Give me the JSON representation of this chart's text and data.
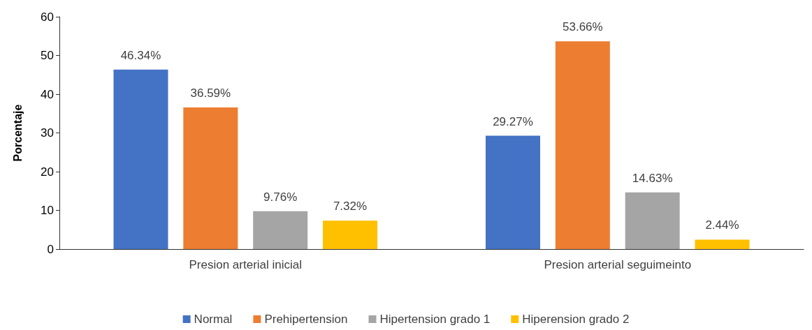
{
  "chart_data": {
    "type": "bar",
    "ylabel": "Porcentaje",
    "categories": [
      "Presion arterial inicial",
      "Presion arterial seguimeinto"
    ],
    "series": [
      {
        "name": "Normal",
        "color": "#4472c4",
        "values": [
          46.34,
          29.27
        ],
        "value_labels": [
          "46.34%",
          "29.27%"
        ]
      },
      {
        "name": "Prehipertension",
        "color": "#ed7d31",
        "values": [
          36.59,
          53.66
        ],
        "value_labels": [
          "36.59%",
          "53.66%"
        ]
      },
      {
        "name": "Hipertension grado 1",
        "color": "#a5a5a5",
        "values": [
          9.76,
          14.63
        ],
        "value_labels": [
          "9.76%",
          "14.63%"
        ]
      },
      {
        "name": "Hiperension grado 2",
        "color": "#ffc000",
        "values": [
          7.32,
          2.44
        ],
        "value_labels": [
          "7.32%",
          "2.44%"
        ]
      }
    ],
    "ylim": [
      0,
      60
    ],
    "yticks": [
      0,
      10,
      20,
      30,
      40,
      50,
      60
    ],
    "grid": false,
    "legend": "bottom"
  }
}
